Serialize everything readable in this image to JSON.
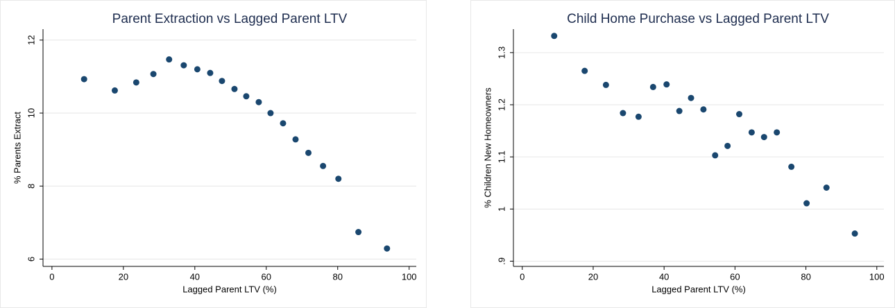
{
  "chart_data": [
    {
      "type": "scatter",
      "title": "Parent Extraction vs Lagged Parent LTV",
      "x_label": "Lagged Parent LTV (%)",
      "y_label": "% Parents Extract",
      "color": "#1a476f",
      "grid": true,
      "xlim": [
        -2.5,
        102
      ],
      "xticks": [
        0,
        20,
        40,
        60,
        80,
        100
      ],
      "ylim": [
        5.8,
        12.3
      ],
      "yticks": [
        6,
        8,
        10,
        12
      ],
      "x": [
        9,
        17.6,
        23.6,
        28.4,
        32.8,
        36.9,
        40.7,
        44.3,
        47.6,
        51.1,
        54.4,
        57.9,
        61.2,
        64.7,
        68.2,
        71.8,
        75.9,
        80.2,
        85.8,
        93.8
      ],
      "values": [
        10.93,
        10.62,
        10.84,
        11.07,
        11.47,
        11.31,
        11.2,
        11.1,
        10.88,
        10.66,
        10.46,
        10.3,
        10.0,
        9.72,
        9.28,
        8.91,
        8.55,
        8.2,
        6.74,
        6.29
      ]
    },
    {
      "type": "scatter",
      "title": "Child Home Purchase vs Lagged Parent LTV",
      "x_label": "Lagged Parent LTV (%)",
      "y_label": "% Children New Homeowners",
      "color": "#1a476f",
      "grid": true,
      "xlim": [
        -2.5,
        102
      ],
      "xticks": [
        0,
        20,
        40,
        60,
        80,
        100
      ],
      "ylim": [
        0.89,
        1.345
      ],
      "yticks": [
        {
          "value": 0.9,
          "label": ".9"
        },
        1,
        1.1,
        1.2,
        1.3
      ],
      "x": [
        9,
        17.6,
        23.6,
        28.4,
        32.8,
        36.9,
        40.7,
        44.3,
        47.6,
        51.1,
        54.4,
        57.9,
        61.2,
        64.7,
        68.2,
        71.8,
        75.9,
        80.2,
        85.8,
        93.8
      ],
      "values": [
        1.332,
        1.265,
        1.238,
        1.184,
        1.177,
        1.234,
        1.239,
        1.188,
        1.213,
        1.191,
        1.103,
        1.121,
        1.182,
        1.147,
        1.138,
        1.147,
        1.081,
        1.011,
        1.041,
        0.953
      ]
    }
  ]
}
